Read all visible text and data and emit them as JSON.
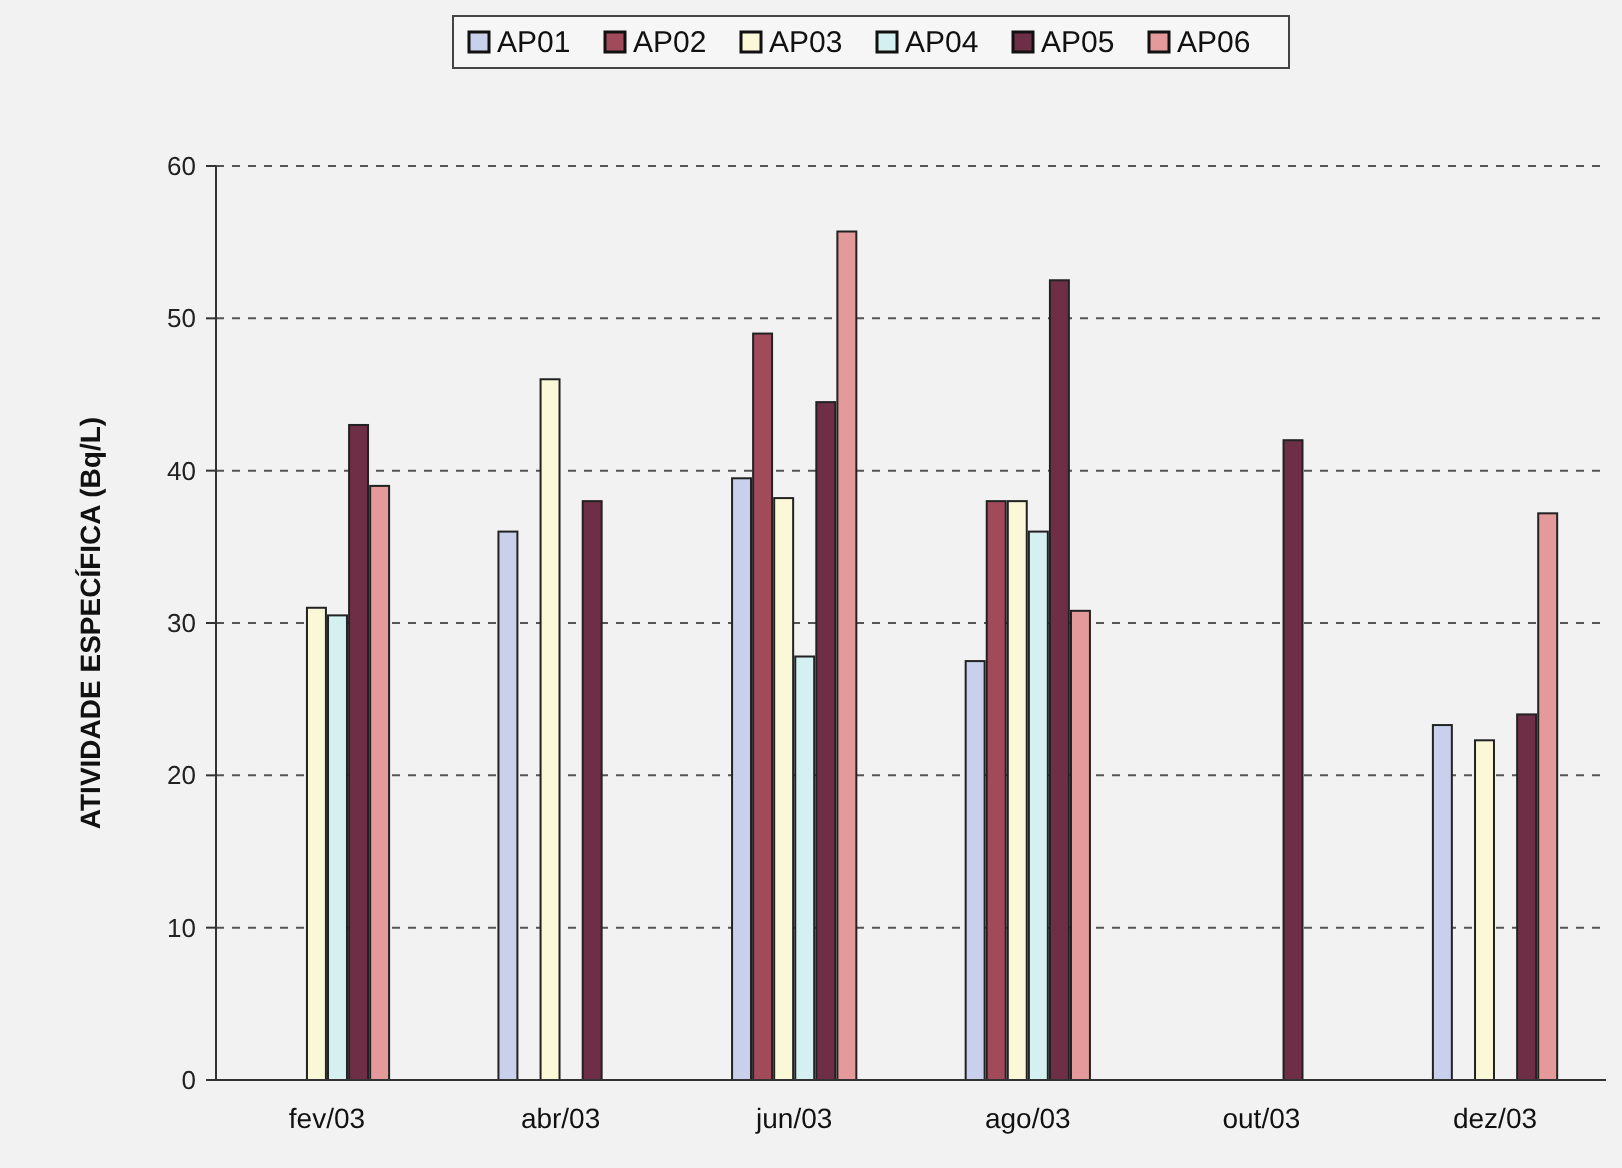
{
  "chart_data": {
    "type": "bar",
    "ylabel": "ATIVIDADE ESPECÍFICA (Bq/L)",
    "categories": [
      "fev/03",
      "abr/03",
      "jun/03",
      "ago/03",
      "out/03",
      "dez/03"
    ],
    "series": [
      {
        "name": "AP01",
        "color": "#c8d0ec",
        "values": [
          null,
          36,
          39.5,
          27.5,
          null,
          23.3
        ]
      },
      {
        "name": "AP02",
        "color": "#a04a5a",
        "values": [
          null,
          null,
          49,
          38,
          null,
          null
        ]
      },
      {
        "name": "AP03",
        "color": "#fbf8d8",
        "values": [
          31,
          46,
          38.2,
          38,
          null,
          22.3
        ]
      },
      {
        "name": "AP04",
        "color": "#d4f0f0",
        "values": [
          30.5,
          null,
          27.8,
          36,
          null,
          null
        ]
      },
      {
        "name": "AP05",
        "color": "#6e2e46",
        "values": [
          43,
          38,
          44.5,
          52.5,
          42,
          24
        ]
      },
      {
        "name": "AP06",
        "color": "#e49a9a",
        "values": [
          39,
          null,
          55.7,
          30.8,
          null,
          37.2
        ]
      }
    ],
    "ylim": [
      0,
      60
    ],
    "yticks": [
      0,
      10,
      20,
      30,
      40,
      50,
      60
    ],
    "grid": "y",
    "legend": "top"
  }
}
